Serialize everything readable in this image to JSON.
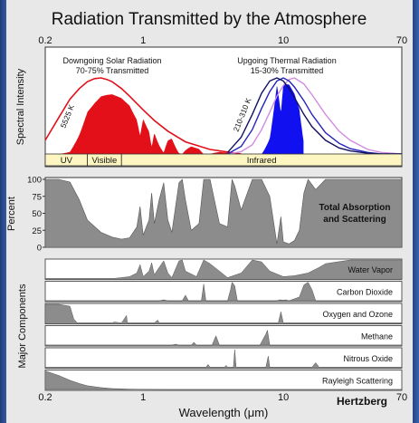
{
  "title": "Radiation Transmitted by the Atmosphere",
  "credit": "Hertzberg",
  "chart_data": {
    "type": "area",
    "xscale": "log",
    "xlim": [
      0.2,
      70
    ],
    "x_ticks": [
      "0.2",
      "1",
      "10",
      "70"
    ],
    "xlabel": "Wavelength (μm)",
    "panels": [
      {
        "id": "spectral",
        "ylabel": "Spectral Intensity",
        "annotations": {
          "solar_title": "Downgoing Solar Radiation",
          "solar_sub": "70-75% Transmitted",
          "thermal_title": "Upgoing Thermal Radiation",
          "thermal_sub": "15-30% Transmitted",
          "solar_temp": "5525 K",
          "thermal_temp": "210-310 K"
        },
        "bands": [
          "UV",
          "Visible",
          "Infrared"
        ],
        "band_edges": [
          0.2,
          0.4,
          0.7,
          70
        ],
        "solar_curve": {
          "x": [
            0.2,
            0.25,
            0.3,
            0.35,
            0.4,
            0.45,
            0.5,
            0.55,
            0.6,
            0.7,
            0.8,
            1.0,
            1.2,
            1.5,
            2.0,
            3.0,
            5.0
          ],
          "y": [
            0.18,
            0.48,
            0.72,
            0.86,
            0.95,
            0.99,
            1.0,
            0.98,
            0.95,
            0.86,
            0.76,
            0.58,
            0.44,
            0.3,
            0.16,
            0.06,
            0.0
          ]
        },
        "thermal_curves": [
          {
            "name": "210 K",
            "x": [
              4,
              5,
              6,
              7,
              8,
              9,
              10,
              11,
              12,
              14,
              16,
              20,
              25,
              30,
              40,
              50,
              70
            ],
            "y": [
              0,
              0.03,
              0.12,
              0.32,
              0.55,
              0.76,
              0.9,
              0.98,
              1.0,
              0.92,
              0.78,
              0.52,
              0.3,
              0.18,
              0.06,
              0.02,
              0
            ]
          },
          {
            "name": "260 K",
            "x": [
              4,
              5,
              6,
              7,
              8,
              9,
              10,
              11,
              12,
              14,
              16,
              20,
              25,
              30,
              40,
              50,
              70
            ],
            "y": [
              0,
              0.1,
              0.32,
              0.6,
              0.82,
              0.96,
              1.0,
              0.96,
              0.88,
              0.7,
              0.52,
              0.28,
              0.14,
              0.07,
              0.02,
              0,
              0
            ]
          },
          {
            "name": "310 K",
            "x": [
              4,
              5,
              6,
              7,
              8,
              9,
              10,
              11,
              12,
              14,
              16,
              20,
              25,
              30,
              40,
              50,
              70
            ],
            "y": [
              0.02,
              0.22,
              0.52,
              0.8,
              0.96,
              1.0,
              0.96,
              0.86,
              0.74,
              0.52,
              0.36,
              0.18,
              0.08,
              0.04,
              0.01,
              0,
              0
            ]
          }
        ]
      },
      {
        "id": "total",
        "ylabel": "Percent",
        "y_ticks": [
          0,
          25,
          50,
          75,
          100
        ],
        "label_line1": "Total Absorption",
        "label_line2": "and Scattering",
        "absorption": {
          "x": [
            0.2,
            0.25,
            0.3,
            0.35,
            0.4,
            0.5,
            0.6,
            0.7,
            0.8,
            0.9,
            0.95,
            1.0,
            1.1,
            1.15,
            1.2,
            1.3,
            1.4,
            1.5,
            1.6,
            1.8,
            1.9,
            2.0,
            2.2,
            2.5,
            2.7,
            3.0,
            3.5,
            4.0,
            4.3,
            4.5,
            5.0,
            6.0,
            7.0,
            8.0,
            9.0,
            9.6,
            10.0,
            11.0,
            12.0,
            13.0,
            14.0,
            15.0,
            17.0,
            20.0,
            25.0,
            30.0,
            40.0,
            70.0
          ],
          "y": [
            100,
            100,
            96,
            70,
            40,
            22,
            15,
            12,
            14,
            30,
            60,
            18,
            40,
            80,
            35,
            70,
            95,
            40,
            22,
            95,
            100,
            70,
            25,
            35,
            100,
            100,
            35,
            30,
            100,
            90,
            55,
            100,
            100,
            75,
            5,
            45,
            8,
            5,
            10,
            25,
            80,
            100,
            85,
            100,
            100,
            100,
            100,
            100
          ]
        }
      },
      {
        "id": "components",
        "ylabel": "Major Components",
        "rows": [
          {
            "name": "Water Vapor",
            "x": [
              0.2,
              0.6,
              0.7,
              0.8,
              0.9,
              0.95,
              1.0,
              1.1,
              1.15,
              1.2,
              1.3,
              1.4,
              1.5,
              1.6,
              1.8,
              1.9,
              2.0,
              2.4,
              2.7,
              3.0,
              4.0,
              5.0,
              6.0,
              7.0,
              8.0,
              10.0,
              12.0,
              15.0,
              18.0,
              20.0,
              30.0,
              70.0
            ],
            "y": [
              0,
              0,
              0.05,
              0.1,
              0.3,
              0.75,
              0.1,
              0.4,
              0.85,
              0.2,
              0.6,
              0.95,
              0.3,
              0.05,
              0.95,
              1.0,
              0.4,
              0.1,
              1.0,
              0.8,
              0.05,
              0.3,
              1.0,
              0.9,
              0.4,
              0.1,
              0.15,
              0.3,
              0.6,
              0.8,
              1.0,
              1.0
            ]
          },
          {
            "name": "Carbon Dioxide",
            "x": [
              0.2,
              1.3,
              1.4,
              1.5,
              1.9,
              2.0,
              2.1,
              2.6,
              2.7,
              2.8,
              4.0,
              4.2,
              4.3,
              4.5,
              4.7,
              9.0,
              9.4,
              10.0,
              10.4,
              11.0,
              13.0,
              14.0,
              15.0,
              16.0,
              17.0,
              70.0
            ],
            "y": [
              0,
              0,
              0.05,
              0,
              0,
              0.3,
              0,
              0,
              0.9,
              0,
              0,
              0.6,
              1.0,
              0.8,
              0,
              0,
              0.05,
              0.03,
              0.05,
              0,
              0.2,
              0.85,
              1.0,
              0.6,
              0,
              0
            ]
          },
          {
            "name": "Oxygen and Ozone",
            "x": [
              0.2,
              0.25,
              0.3,
              0.32,
              0.34,
              0.6,
              0.62,
              0.7,
              0.76,
              0.77,
              1.2,
              1.27,
              1.3,
              9.2,
              9.6,
              10.0,
              70.0
            ],
            "y": [
              1.0,
              1.0,
              0.9,
              0.2,
              0,
              0,
              0.05,
              0,
              0.4,
              0,
              0,
              0.15,
              0,
              0,
              0.6,
              0,
              0
            ]
          },
          {
            "name": "Methane",
            "x": [
              0.2,
              1.6,
              1.7,
              1.8,
              2.2,
              2.3,
              2.4,
              3.1,
              3.3,
              3.5,
              6.8,
              7.5,
              7.7,
              8.0,
              70.0
            ],
            "y": [
              0,
              0,
              0.05,
              0,
              0,
              0.15,
              0,
              0,
              0.5,
              0,
              0,
              0.6,
              0.8,
              0,
              0
            ]
          },
          {
            "name": "Nitrous Oxide",
            "x": [
              0.2,
              2.8,
              2.9,
              3.0,
              3.8,
              3.9,
              4.0,
              4.4,
              4.5,
              4.6,
              7.5,
              7.8,
              8.0,
              16.0,
              17.0,
              18.0,
              70.0
            ],
            "y": [
              0,
              0,
              0.15,
              0,
              0,
              0.1,
              0,
              0,
              0.95,
              0,
              0,
              0.6,
              0,
              0,
              0.25,
              0,
              0
            ]
          },
          {
            "name": "Rayleigh Scattering",
            "x": [
              0.2,
              0.25,
              0.3,
              0.35,
              0.4,
              0.5,
              0.6,
              0.8,
              1.0,
              1.5,
              70.0
            ],
            "y": [
              1.0,
              0.75,
              0.5,
              0.32,
              0.2,
              0.1,
              0.05,
              0.02,
              0.01,
              0,
              0
            ]
          }
        ]
      }
    ]
  }
}
